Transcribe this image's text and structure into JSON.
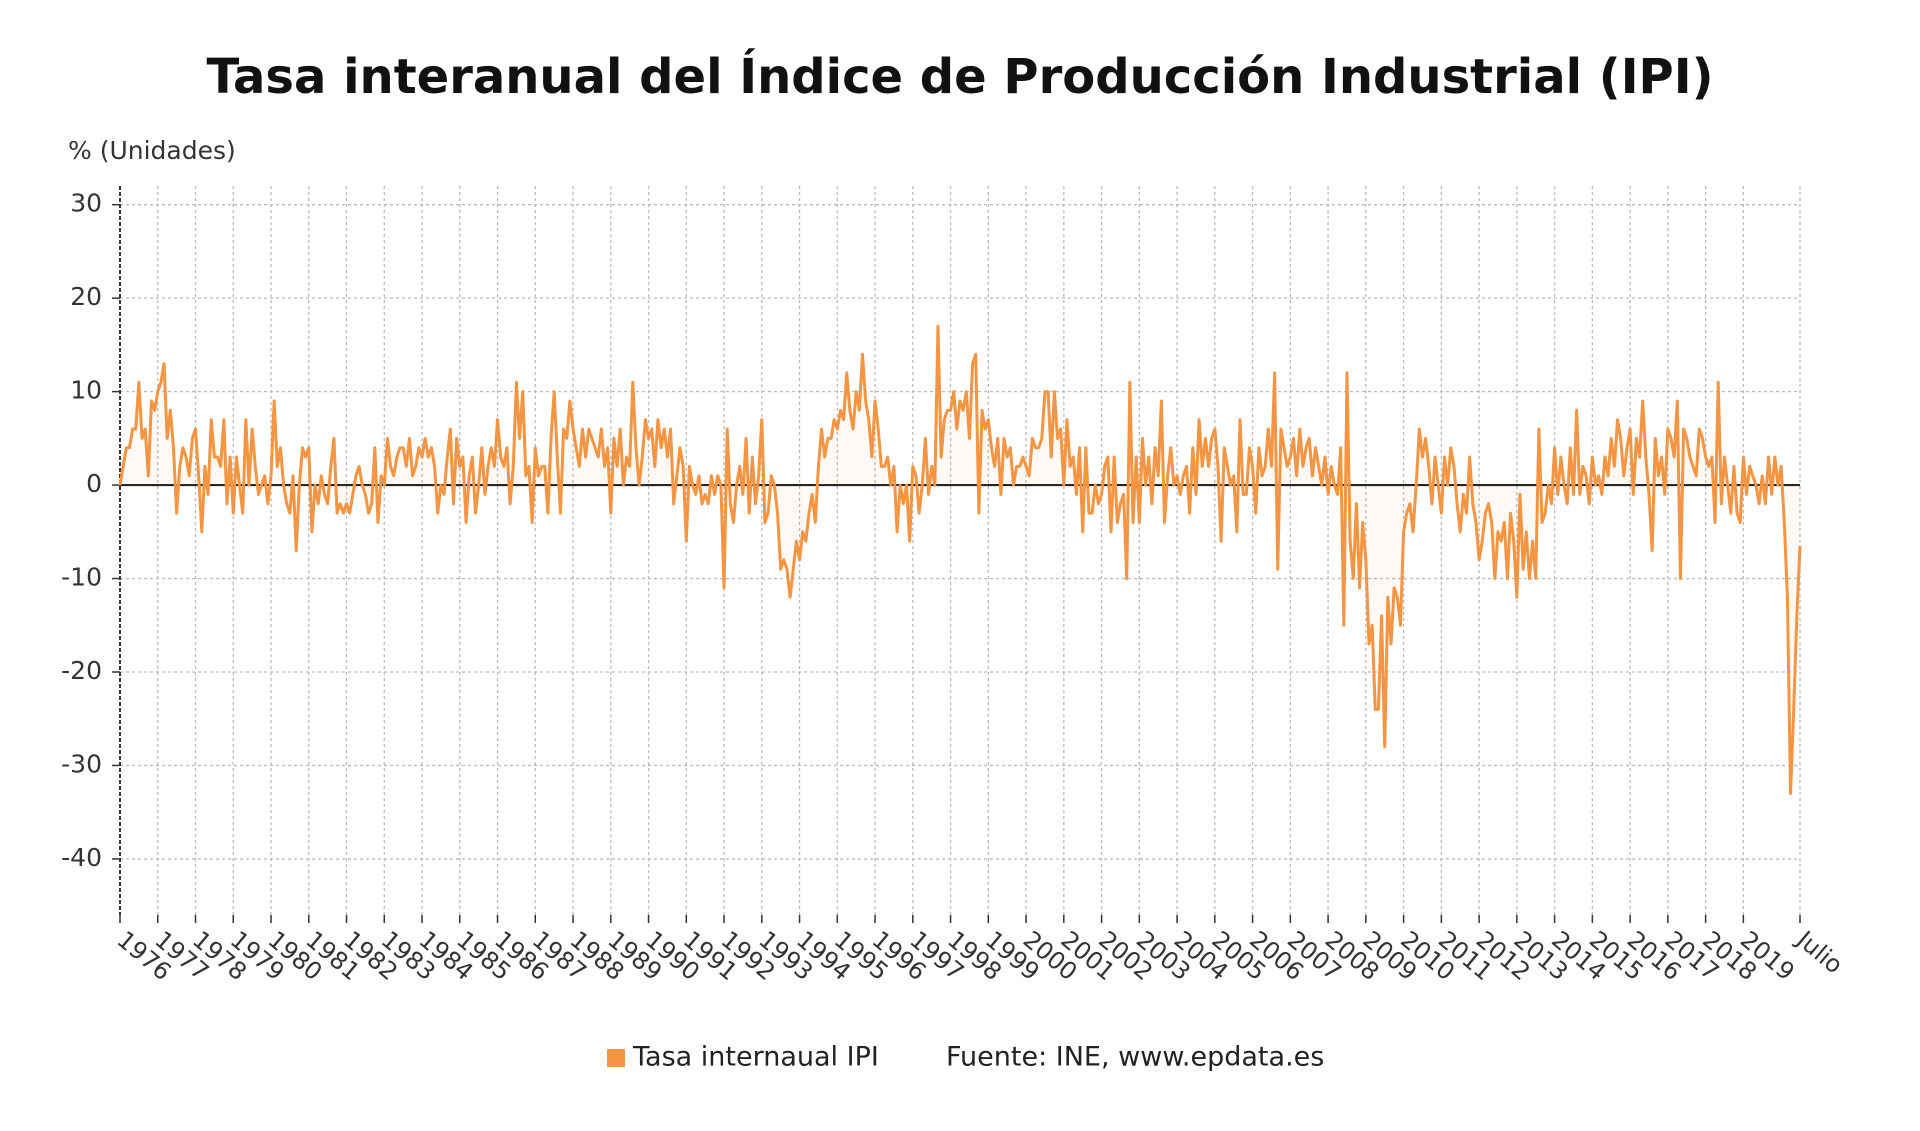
{
  "chart_data": {
    "type": "line",
    "title": "Tasa interanual del Índice de Producción Industrial (IPI)",
    "y_label": "% (Unidades)",
    "source": "Fuente: INE, www.epdata.es",
    "ylim": [
      -46,
      32
    ],
    "yticks": [
      -40,
      -30,
      -20,
      -10,
      0,
      10,
      20,
      30
    ],
    "grid": true,
    "legend": "bottom",
    "categories": [
      "1976",
      null,
      null,
      null,
      null,
      null,
      null,
      null,
      null,
      null,
      null,
      null,
      "1977",
      null,
      null,
      null,
      null,
      null,
      null,
      null,
      null,
      null,
      null,
      null,
      "1978",
      null,
      null,
      null,
      null,
      null,
      null,
      null,
      null,
      null,
      null,
      null,
      "1979",
      null,
      null,
      null,
      null,
      null,
      null,
      null,
      null,
      null,
      null,
      null,
      "1980",
      null,
      null,
      null,
      null,
      null,
      null,
      null,
      null,
      null,
      null,
      null,
      "1981",
      null,
      null,
      null,
      null,
      null,
      null,
      null,
      null,
      null,
      null,
      null,
      "1982",
      null,
      null,
      null,
      null,
      null,
      null,
      null,
      null,
      null,
      null,
      null,
      "1983",
      null,
      null,
      null,
      null,
      null,
      null,
      null,
      null,
      null,
      null,
      null,
      "1984",
      null,
      null,
      null,
      null,
      null,
      null,
      null,
      null,
      null,
      null,
      null,
      "1985",
      null,
      null,
      null,
      null,
      null,
      null,
      null,
      null,
      null,
      null,
      null,
      "1986",
      null,
      null,
      null,
      null,
      null,
      null,
      null,
      null,
      null,
      null,
      null,
      "1987",
      null,
      null,
      null,
      null,
      null,
      null,
      null,
      null,
      null,
      null,
      null,
      "1988",
      null,
      null,
      null,
      null,
      null,
      null,
      null,
      null,
      null,
      null,
      null,
      "1989",
      null,
      null,
      null,
      null,
      null,
      null,
      null,
      null,
      null,
      null,
      null,
      "1990",
      null,
      null,
      null,
      null,
      null,
      null,
      null,
      null,
      null,
      null,
      null,
      "1991",
      null,
      null,
      null,
      null,
      null,
      null,
      null,
      null,
      null,
      null,
      null,
      "1992",
      null,
      null,
      null,
      null,
      null,
      null,
      null,
      null,
      null,
      null,
      null,
      "1993",
      null,
      null,
      null,
      null,
      null,
      null,
      null,
      null,
      null,
      null,
      null,
      "1994",
      null,
      null,
      null,
      null,
      null,
      null,
      null,
      null,
      null,
      null,
      null,
      "1995",
      null,
      null,
      null,
      null,
      null,
      null,
      null,
      null,
      null,
      null,
      null,
      "1996",
      null,
      null,
      null,
      null,
      null,
      null,
      null,
      null,
      null,
      null,
      null,
      "1997",
      null,
      null,
      null,
      null,
      null,
      null,
      null,
      null,
      null,
      null,
      null,
      "1998",
      null,
      null,
      null,
      null,
      null,
      null,
      null,
      null,
      null,
      null,
      null,
      "1999",
      null,
      null,
      null,
      null,
      null,
      null,
      null,
      null,
      null,
      null,
      null,
      "2000",
      null,
      null,
      null,
      null,
      null,
      null,
      null,
      null,
      null,
      null,
      null,
      "2001",
      null,
      null,
      null,
      null,
      null,
      null,
      null,
      null,
      null,
      null,
      null,
      "2002",
      null,
      null,
      null,
      null,
      null,
      null,
      null,
      null,
      null,
      null,
      null,
      "2003",
      null,
      null,
      null,
      null,
      null,
      null,
      null,
      null,
      null,
      null,
      null,
      "2004",
      null,
      null,
      null,
      null,
      null,
      null,
      null,
      null,
      null,
      null,
      null,
      "2005",
      null,
      null,
      null,
      null,
      null,
      null,
      null,
      null,
      null,
      null,
      null,
      "2006",
      null,
      null,
      null,
      null,
      null,
      null,
      null,
      null,
      null,
      null,
      null,
      "2007",
      null,
      null,
      null,
      null,
      null,
      null,
      null,
      null,
      null,
      null,
      null,
      "2008",
      null,
      null,
      null,
      null,
      null,
      null,
      null,
      null,
      null,
      null,
      null,
      "2009",
      null,
      null,
      null,
      null,
      null,
      null,
      null,
      null,
      null,
      null,
      null,
      "2010",
      null,
      null,
      null,
      null,
      null,
      null,
      null,
      null,
      null,
      null,
      null,
      "2011",
      null,
      null,
      null,
      null,
      null,
      null,
      null,
      null,
      null,
      null,
      null,
      "2012",
      null,
      null,
      null,
      null,
      null,
      null,
      null,
      null,
      null,
      null,
      null,
      "2013",
      null,
      null,
      null,
      null,
      null,
      null,
      null,
      null,
      null,
      null,
      null,
      "2014",
      null,
      null,
      null,
      null,
      null,
      null,
      null,
      null,
      null,
      null,
      null,
      "2015",
      null,
      null,
      null,
      null,
      null,
      null,
      null,
      null,
      null,
      null,
      null,
      "2016",
      null,
      null,
      null,
      null,
      null,
      null,
      null,
      null,
      null,
      null,
      null,
      "2017",
      null,
      null,
      null,
      null,
      null,
      null,
      null,
      null,
      null,
      null,
      null,
      "2018",
      null,
      null,
      null,
      null,
      null,
      null,
      null,
      null,
      null,
      null,
      null,
      "2019",
      null,
      null,
      null,
      null,
      null,
      null,
      null,
      null,
      null,
      null,
      null,
      null,
      null,
      null,
      null,
      null,
      null,
      "Julio"
    ],
    "series": [
      {
        "name": "Tasa internaual IPI",
        "color": "#f39543",
        "values": [
          0,
          2,
          4,
          4,
          6,
          6,
          11,
          5,
          6,
          1,
          9,
          8,
          10,
          11,
          13,
          5,
          8,
          4,
          -3,
          2,
          4,
          3,
          1,
          5,
          6,
          1,
          -5,
          2,
          -1,
          7,
          3,
          3,
          2,
          7,
          -2,
          3,
          -3,
          3,
          0,
          -3,
          7,
          0,
          6,
          2,
          -1,
          0,
          1,
          -2,
          1,
          9,
          2,
          4,
          0,
          -2,
          -3,
          1,
          -7,
          0,
          4,
          3,
          4,
          -5,
          0,
          -2,
          1,
          -1,
          -2,
          2,
          5,
          -3,
          -2,
          -3,
          -2,
          -3,
          -1,
          1,
          2,
          0,
          -1,
          -3,
          -2,
          4,
          -4,
          1,
          0,
          5,
          2,
          1,
          3,
          4,
          4,
          2,
          5,
          1,
          2,
          4,
          3,
          5,
          3,
          4,
          2,
          -3,
          0,
          -1,
          3,
          6,
          -2,
          5,
          2,
          3,
          -4,
          1,
          3,
          -3,
          0,
          4,
          -1,
          2,
          4,
          2,
          7,
          3,
          2,
          4,
          -2,
          2,
          11,
          5,
          10,
          1,
          2,
          -4,
          4,
          1,
          2,
          2,
          -3,
          5,
          10,
          3,
          -3,
          6,
          5,
          9,
          6,
          4,
          2,
          6,
          3,
          6,
          5,
          4,
          3,
          6,
          2,
          4,
          -3,
          5,
          2,
          6,
          0,
          3,
          2,
          11,
          4,
          0,
          3,
          7,
          5,
          6,
          2,
          7,
          4,
          6,
          3,
          6,
          -2,
          1,
          4,
          2,
          -6,
          2,
          0,
          -1,
          1,
          -2,
          -1,
          -2,
          1,
          -1,
          1,
          0,
          -11,
          6,
          -2,
          -4,
          0,
          2,
          -1,
          5,
          -3,
          3,
          -2,
          1,
          7,
          -4,
          -3,
          1,
          0,
          -3,
          -9,
          -8,
          -9,
          -12,
          -9,
          -6,
          -8,
          -5,
          -6,
          -3,
          -1,
          -4,
          2,
          6,
          3,
          5,
          5,
          7,
          6,
          8,
          7,
          12,
          8,
          6,
          10,
          8,
          14,
          9,
          7,
          3,
          9,
          6,
          2,
          2,
          3,
          0,
          2,
          -5,
          0,
          -2,
          0,
          -6,
          2,
          1,
          -3,
          0,
          5,
          -1,
          2,
          0,
          17,
          3,
          7,
          8,
          8,
          10,
          6,
          9,
          8,
          10,
          5,
          13,
          14,
          -3,
          8,
          6,
          7,
          4,
          2,
          5,
          -1,
          5,
          3,
          4,
          0,
          2,
          2,
          3,
          2,
          1,
          5,
          4,
          4,
          5,
          10,
          10,
          3,
          10,
          5,
          6,
          0,
          7,
          2,
          3,
          -1,
          4,
          -5,
          4,
          -3,
          -3,
          0,
          -2,
          -1,
          2,
          3,
          -5,
          3,
          -4,
          -2,
          -1,
          -10,
          11,
          -4,
          3,
          -4,
          5,
          0,
          3,
          -2,
          4,
          1,
          9,
          -4,
          1,
          4,
          0,
          1,
          -1,
          1,
          2,
          -3,
          4,
          -1,
          7,
          2,
          5,
          2,
          5,
          6,
          2,
          -6,
          4,
          2,
          0,
          1,
          -5,
          7,
          -1,
          -1,
          4,
          2,
          -3,
          4,
          1,
          2,
          6,
          2,
          12,
          -9,
          6,
          4,
          2,
          3,
          5,
          1,
          6,
          2,
          4,
          5,
          1,
          4,
          2,
          0,
          3,
          -1,
          2,
          0,
          -1,
          4,
          -15,
          12,
          -6,
          -10,
          -2,
          -11,
          -4,
          -8,
          -17,
          -15,
          -24,
          -24,
          -14,
          -28,
          -12,
          -17,
          -11,
          -12,
          -15,
          -5,
          -3,
          -2,
          -5,
          0,
          6,
          3,
          5,
          2,
          -2,
          3,
          0,
          -3,
          3,
          0,
          4,
          2,
          -2,
          -5,
          -1,
          -3,
          3,
          -2,
          -4,
          -8,
          -6,
          -3,
          -2,
          -4,
          -10,
          -5,
          -6,
          -4,
          -10,
          -3,
          -6,
          -12,
          -1,
          -9,
          -5,
          -10,
          -6,
          -10,
          6,
          -4,
          -3,
          0,
          -2,
          4,
          -1,
          3,
          0,
          -2,
          4,
          -1,
          8,
          -1,
          2,
          1,
          -2,
          3,
          0,
          1,
          -1,
          3,
          1,
          5,
          2,
          7,
          5,
          1,
          4,
          6,
          -1,
          5,
          3,
          9,
          3,
          -1,
          -7,
          5,
          1,
          3,
          -1,
          6,
          5,
          3,
          9,
          -10,
          6,
          5,
          3,
          2,
          1,
          6,
          5,
          3,
          2,
          3,
          -4,
          11,
          -2,
          3,
          0,
          -3,
          2,
          -3,
          -4,
          3,
          -1,
          2,
          1,
          0,
          -2,
          1,
          -2,
          3,
          -1,
          3,
          0,
          2,
          -4,
          -12,
          -33,
          -24,
          -14,
          -6.5
        ]
      }
    ]
  }
}
